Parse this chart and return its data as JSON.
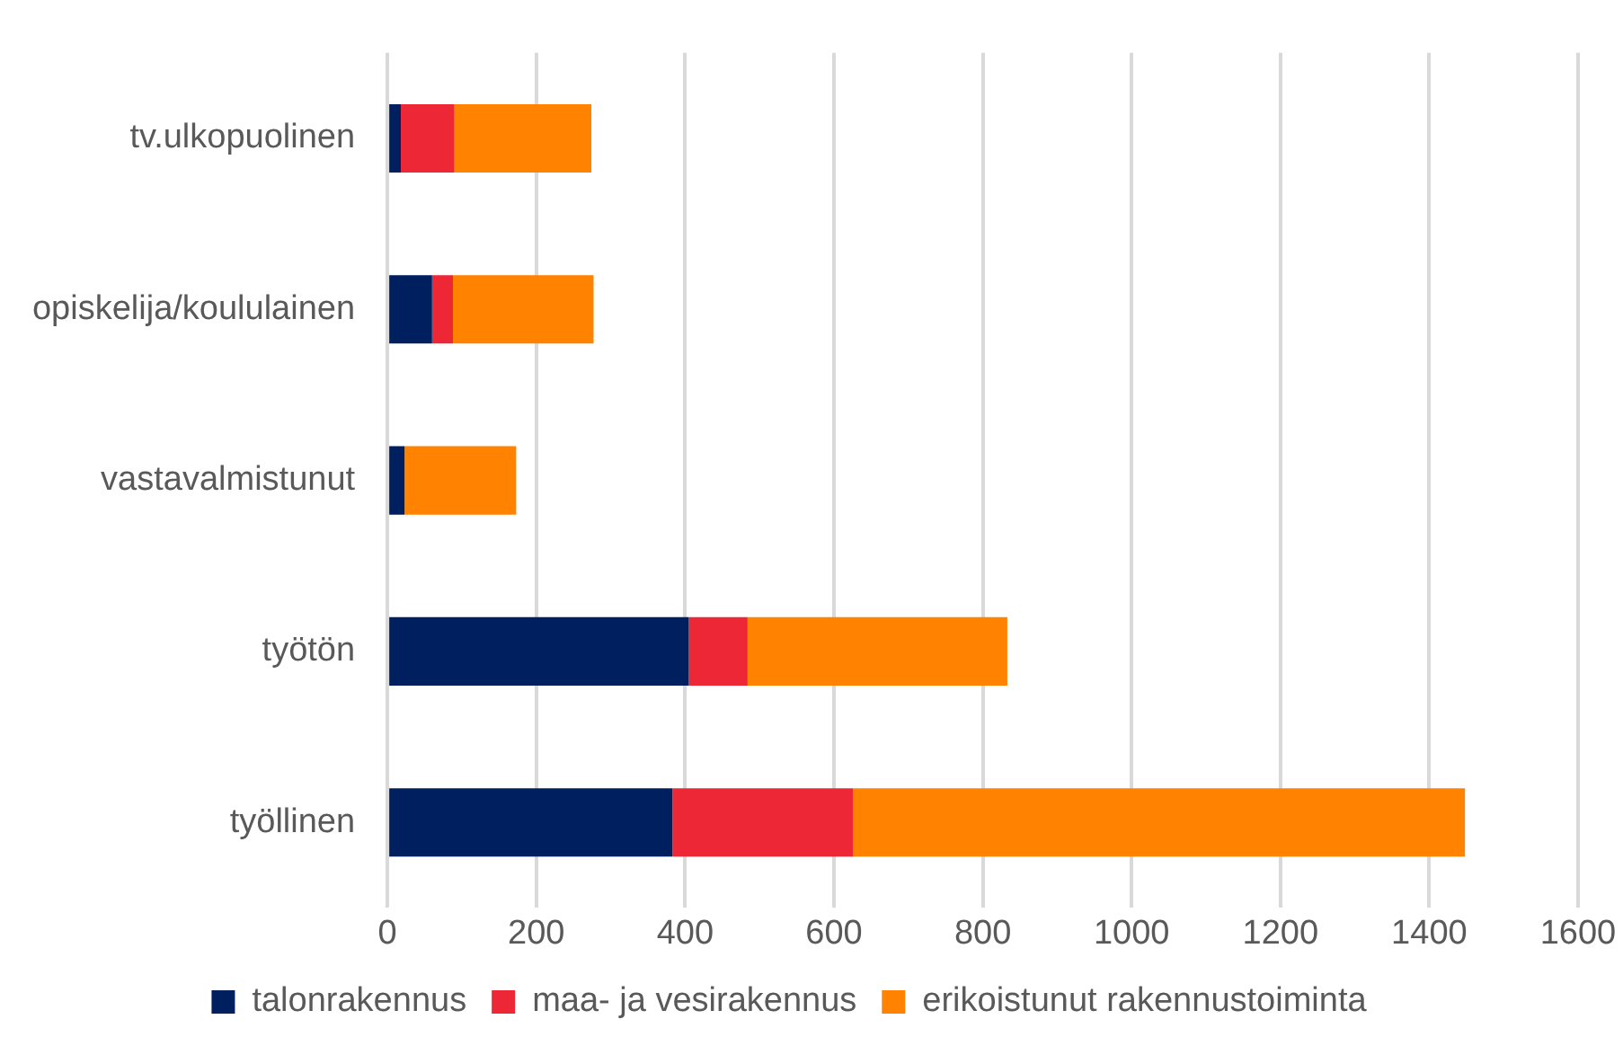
{
  "chart_data": {
    "type": "bar",
    "orientation": "horizontal",
    "stacked": true,
    "categories": [
      "tv.ulkopuolinen",
      "opiskelija/koululainen",
      "vastavalmistunut",
      "työtön",
      "työllinen"
    ],
    "series": [
      {
        "name": "talonrakennus",
        "color": "#001f5f",
        "values": [
          18,
          60,
          23,
          405,
          383
        ]
      },
      {
        "name": "maa- ja vesirakennus",
        "color": "#ee2737",
        "values": [
          72,
          28,
          0,
          79,
          243
        ]
      },
      {
        "name": "erikoistunut rakennustoiminta",
        "color": "#ff8200",
        "values": [
          184,
          189,
          150,
          349,
          822
        ]
      }
    ],
    "xlim": [
      0,
      1600
    ],
    "xticks": [
      0,
      200,
      400,
      600,
      800,
      1000,
      1200,
      1400,
      1600
    ],
    "grid": "x",
    "legend": "bottom"
  }
}
